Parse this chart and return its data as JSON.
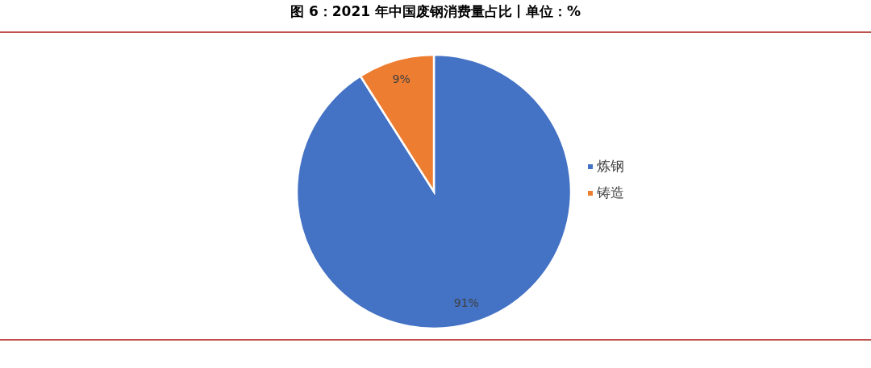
{
  "chart_data": {
    "type": "pie",
    "title": "图 6：2021 年中国废钢消费量占比丨单位：%",
    "categories": [
      "炼钢",
      "铸造"
    ],
    "values": [
      91,
      9
    ],
    "colors": [
      "#4472c4",
      "#ed7d31"
    ],
    "value_labels": [
      "91%",
      "9%"
    ],
    "legend": "right"
  }
}
